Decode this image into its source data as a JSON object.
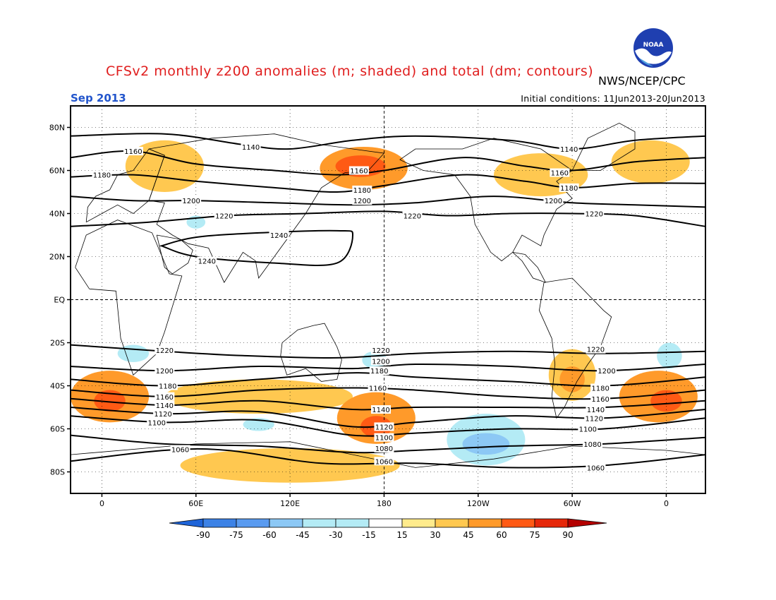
{
  "header": {
    "title": "CFSv2 monthly z200 anomalies (m; shaded) and total (dm; contours)",
    "agency": "NWS/NCEP/CPC",
    "month": "Sep 2013",
    "initial_conditions": "Initial conditions: 11Jun2013-20Jun2013",
    "logo_text": "NOAA"
  },
  "colors": {
    "title": "#e01e1e",
    "month": "#2255cc",
    "frame": "#000000",
    "coast": "#000000"
  },
  "axes": {
    "lat_labels": [
      "80N",
      "60N",
      "40N",
      "20N",
      "EQ",
      "20S",
      "40S",
      "60S",
      "80S"
    ],
    "lat_values": [
      80,
      60,
      40,
      20,
      0,
      -20,
      -40,
      -60,
      -80
    ],
    "lon_labels": [
      "0",
      "60E",
      "120E",
      "180",
      "120W",
      "60W",
      "0"
    ],
    "lon_values": [
      0,
      60,
      120,
      180,
      240,
      300,
      360
    ],
    "lon_range": [
      -20,
      385
    ],
    "lat_range": [
      -90,
      90
    ]
  },
  "colorbar": {
    "labels": [
      "-90",
      "-75",
      "-60",
      "-45",
      "-30",
      "-15",
      "15",
      "30",
      "45",
      "60",
      "75",
      "90"
    ],
    "colors": [
      "#1e64d8",
      "#3c82e6",
      "#5a9bf0",
      "#8cc8f5",
      "#b4ebf5",
      "#ffffff",
      "#ffeb8c",
      "#ffc850",
      "#ff9a2a",
      "#ff5a14",
      "#e6280a",
      "#b40000"
    ]
  },
  "contours": [
    {
      "label": "1140",
      "points": [
        [
          -20,
          76
        ],
        [
          40,
          77
        ],
        [
          90,
          72
        ],
        [
          120,
          70
        ],
        [
          160,
          74
        ],
        [
          200,
          76
        ],
        [
          260,
          74
        ],
        [
          300,
          70
        ],
        [
          340,
          74
        ],
        [
          385,
          76
        ]
      ],
      "labels_at": [
        [
          95,
          71
        ],
        [
          298,
          70
        ]
      ]
    },
    {
      "label": "1160",
      "points": [
        [
          -20,
          66
        ],
        [
          20,
          69
        ],
        [
          60,
          63
        ],
        [
          110,
          60
        ],
        [
          150,
          58
        ],
        [
          180,
          60
        ],
        [
          230,
          66
        ],
        [
          270,
          62
        ],
        [
          300,
          60
        ],
        [
          340,
          64
        ],
        [
          385,
          66
        ]
      ],
      "labels_at": [
        [
          20,
          69
        ],
        [
          164,
          60
        ],
        [
          292,
          59
        ]
      ]
    },
    {
      "label": "1180",
      "points": [
        [
          -20,
          57
        ],
        [
          20,
          58
        ],
        [
          60,
          55
        ],
        [
          110,
          52
        ],
        [
          150,
          50
        ],
        [
          180,
          53
        ],
        [
          230,
          58
        ],
        [
          270,
          55
        ],
        [
          300,
          52
        ],
        [
          340,
          54
        ],
        [
          385,
          54
        ]
      ],
      "labels_at": [
        [
          0,
          58
        ],
        [
          166,
          51
        ],
        [
          298,
          52
        ]
      ]
    },
    {
      "label": "1200",
      "points": [
        [
          -20,
          48
        ],
        [
          20,
          46
        ],
        [
          60,
          46
        ],
        [
          110,
          45
        ],
        [
          160,
          44
        ],
        [
          200,
          45
        ],
        [
          250,
          48
        ],
        [
          300,
          45
        ],
        [
          340,
          44
        ],
        [
          385,
          43
        ]
      ],
      "labels_at": [
        [
          57,
          46
        ],
        [
          166,
          46
        ],
        [
          288,
          46
        ]
      ]
    },
    {
      "label": "1220",
      "points": [
        [
          -20,
          34
        ],
        [
          30,
          36
        ],
        [
          80,
          39
        ],
        [
          130,
          40
        ],
        [
          180,
          41
        ],
        [
          220,
          39
        ],
        [
          260,
          40
        ],
        [
          300,
          40
        ],
        [
          340,
          39
        ],
        [
          385,
          34
        ]
      ],
      "labels_at": [
        [
          78,
          39
        ],
        [
          198,
          39
        ],
        [
          314,
          40
        ]
      ]
    },
    {
      "label": "1240",
      "points": [
        [
          38,
          25
        ],
        [
          60,
          29
        ],
        [
          100,
          31
        ],
        [
          150,
          32
        ],
        [
          160,
          30
        ],
        [
          150,
          17
        ],
        [
          110,
          17
        ],
        [
          60,
          20
        ],
        [
          38,
          25
        ]
      ],
      "closed": true,
      "labels_at": [
        [
          113,
          30
        ],
        [
          67,
          18
        ]
      ]
    },
    {
      "label": "1220",
      "points": [
        [
          -20,
          -21
        ],
        [
          40,
          -24
        ],
        [
          90,
          -26
        ],
        [
          150,
          -27
        ],
        [
          200,
          -25
        ],
        [
          260,
          -24
        ],
        [
          320,
          -25
        ],
        [
          385,
          -24
        ]
      ],
      "labels_at": [
        [
          40,
          -23.5
        ],
        [
          178,
          -23.5
        ],
        [
          315,
          -23
        ]
      ]
    },
    {
      "label": "1200",
      "points": [
        [
          -20,
          -31
        ],
        [
          40,
          -33
        ],
        [
          100,
          -31
        ],
        [
          160,
          -32
        ],
        [
          200,
          -30
        ],
        [
          260,
          -31
        ],
        [
          320,
          -33
        ],
        [
          385,
          -30
        ]
      ],
      "labels_at": [
        [
          40,
          -33
        ],
        [
          178,
          -28.5
        ],
        [
          322,
          -33
        ]
      ]
    },
    {
      "label": "1180",
      "points": [
        [
          -20,
          -37
        ],
        [
          40,
          -40
        ],
        [
          100,
          -37
        ],
        [
          160,
          -34
        ],
        [
          200,
          -36
        ],
        [
          260,
          -38
        ],
        [
          320,
          -40
        ],
        [
          385,
          -36
        ]
      ],
      "labels_at": [
        [
          42,
          -40
        ],
        [
          177,
          -33
        ],
        [
          318,
          -41
        ]
      ]
    },
    {
      "label": "1160",
      "points": [
        [
          -20,
          -42
        ],
        [
          40,
          -45
        ],
        [
          100,
          -42
        ],
        [
          160,
          -41
        ],
        [
          200,
          -42
        ],
        [
          260,
          -45
        ],
        [
          320,
          -46
        ],
        [
          385,
          -42
        ]
      ],
      "labels_at": [
        [
          40,
          -45
        ],
        [
          176,
          -41
        ],
        [
          318,
          -46
        ]
      ]
    },
    {
      "label": "1140",
      "points": [
        [
          -20,
          -46
        ],
        [
          40,
          -49
        ],
        [
          100,
          -47
        ],
        [
          160,
          -51
        ],
        [
          200,
          -50
        ],
        [
          260,
          -50
        ],
        [
          320,
          -50
        ],
        [
          385,
          -47
        ]
      ],
      "labels_at": [
        [
          40,
          -49
        ],
        [
          178,
          -51
        ],
        [
          315,
          -51
        ]
      ]
    },
    {
      "label": "1120",
      "points": [
        [
          -20,
          -50
        ],
        [
          40,
          -53
        ],
        [
          100,
          -52
        ],
        [
          160,
          -59
        ],
        [
          200,
          -57
        ],
        [
          260,
          -54
        ],
        [
          320,
          -55
        ],
        [
          385,
          -51
        ]
      ],
      "labels_at": [
        [
          39,
          -53
        ],
        [
          180,
          -59
        ],
        [
          314,
          -55
        ]
      ]
    },
    {
      "label": "1100",
      "points": [
        [
          -20,
          -54
        ],
        [
          40,
          -57
        ],
        [
          100,
          -56
        ],
        [
          160,
          -63
        ],
        [
          200,
          -62
        ],
        [
          260,
          -60
        ],
        [
          320,
          -60
        ],
        [
          385,
          -55
        ]
      ],
      "labels_at": [
        [
          35,
          -57
        ],
        [
          180,
          -64
        ],
        [
          310,
          -60
        ]
      ]
    },
    {
      "label": "1080",
      "points": [
        [
          -20,
          -63
        ],
        [
          40,
          -67
        ],
        [
          100,
          -68
        ],
        [
          160,
          -71
        ],
        [
          200,
          -70
        ],
        [
          260,
          -68
        ],
        [
          320,
          -67
        ],
        [
          385,
          -64
        ]
      ],
      "labels_at": [
        [
          180,
          -69
        ],
        [
          313,
          -67
        ]
      ]
    },
    {
      "label": "1060",
      "points": [
        [
          -20,
          -75
        ],
        [
          40,
          -70
        ],
        [
          80,
          -70
        ],
        [
          140,
          -76
        ],
        [
          200,
          -76
        ],
        [
          260,
          -78
        ],
        [
          320,
          -77
        ],
        [
          385,
          -72
        ]
      ],
      "labels_at": [
        [
          50,
          -69.5
        ],
        [
          180,
          -75
        ],
        [
          315,
          -78
        ]
      ]
    }
  ],
  "anomalies": [
    {
      "lon": 167,
      "lat": 61,
      "rx": 28,
      "ry": 10,
      "value": 45
    },
    {
      "lon": 165,
      "lat": 62,
      "rx": 16,
      "ry": 5,
      "value": 60
    },
    {
      "lon": 40,
      "lat": 62,
      "rx": 25,
      "ry": 12,
      "value": 30
    },
    {
      "lon": 280,
      "lat": 58,
      "rx": 30,
      "ry": 10,
      "value": 30
    },
    {
      "lon": 350,
      "lat": 64,
      "rx": 25,
      "ry": 10,
      "value": 30
    },
    {
      "lon": 100,
      "lat": -45,
      "rx": 60,
      "ry": 8,
      "value": 30
    },
    {
      "lon": 175,
      "lat": -55,
      "rx": 25,
      "ry": 12,
      "value": 45
    },
    {
      "lon": 175,
      "lat": -59,
      "rx": 10,
      "ry": 5,
      "value": 60
    },
    {
      "lon": 5,
      "lat": -45,
      "rx": 25,
      "ry": 12,
      "value": 45
    },
    {
      "lon": 5,
      "lat": -47,
      "rx": 10,
      "ry": 5,
      "value": 60
    },
    {
      "lon": 355,
      "lat": -45,
      "rx": 25,
      "ry": 12,
      "value": 45
    },
    {
      "lon": 360,
      "lat": -47,
      "rx": 10,
      "ry": 5,
      "value": 60
    },
    {
      "lon": 300,
      "lat": -35,
      "rx": 15,
      "ry": 12,
      "value": 30
    },
    {
      "lon": 300,
      "lat": -37,
      "rx": 8,
      "ry": 6,
      "value": 45
    },
    {
      "lon": 120,
      "lat": -77,
      "rx": 70,
      "ry": 8,
      "value": 30
    },
    {
      "lon": 245,
      "lat": -65,
      "rx": 25,
      "ry": 12,
      "value": -15
    },
    {
      "lon": 245,
      "lat": -67,
      "rx": 15,
      "ry": 5,
      "value": -30
    },
    {
      "lon": 100,
      "lat": -58,
      "rx": 10,
      "ry": 3,
      "value": -15
    },
    {
      "lon": 20,
      "lat": -25,
      "rx": 10,
      "ry": 4,
      "value": -15
    },
    {
      "lon": 362,
      "lat": -26,
      "rx": 8,
      "ry": 6,
      "value": -15
    },
    {
      "lon": 174,
      "lat": -28,
      "rx": 8,
      "ry": 4,
      "value": -15
    },
    {
      "lon": 60,
      "lat": 36,
      "rx": 6,
      "ry": 3,
      "value": -15
    }
  ]
}
